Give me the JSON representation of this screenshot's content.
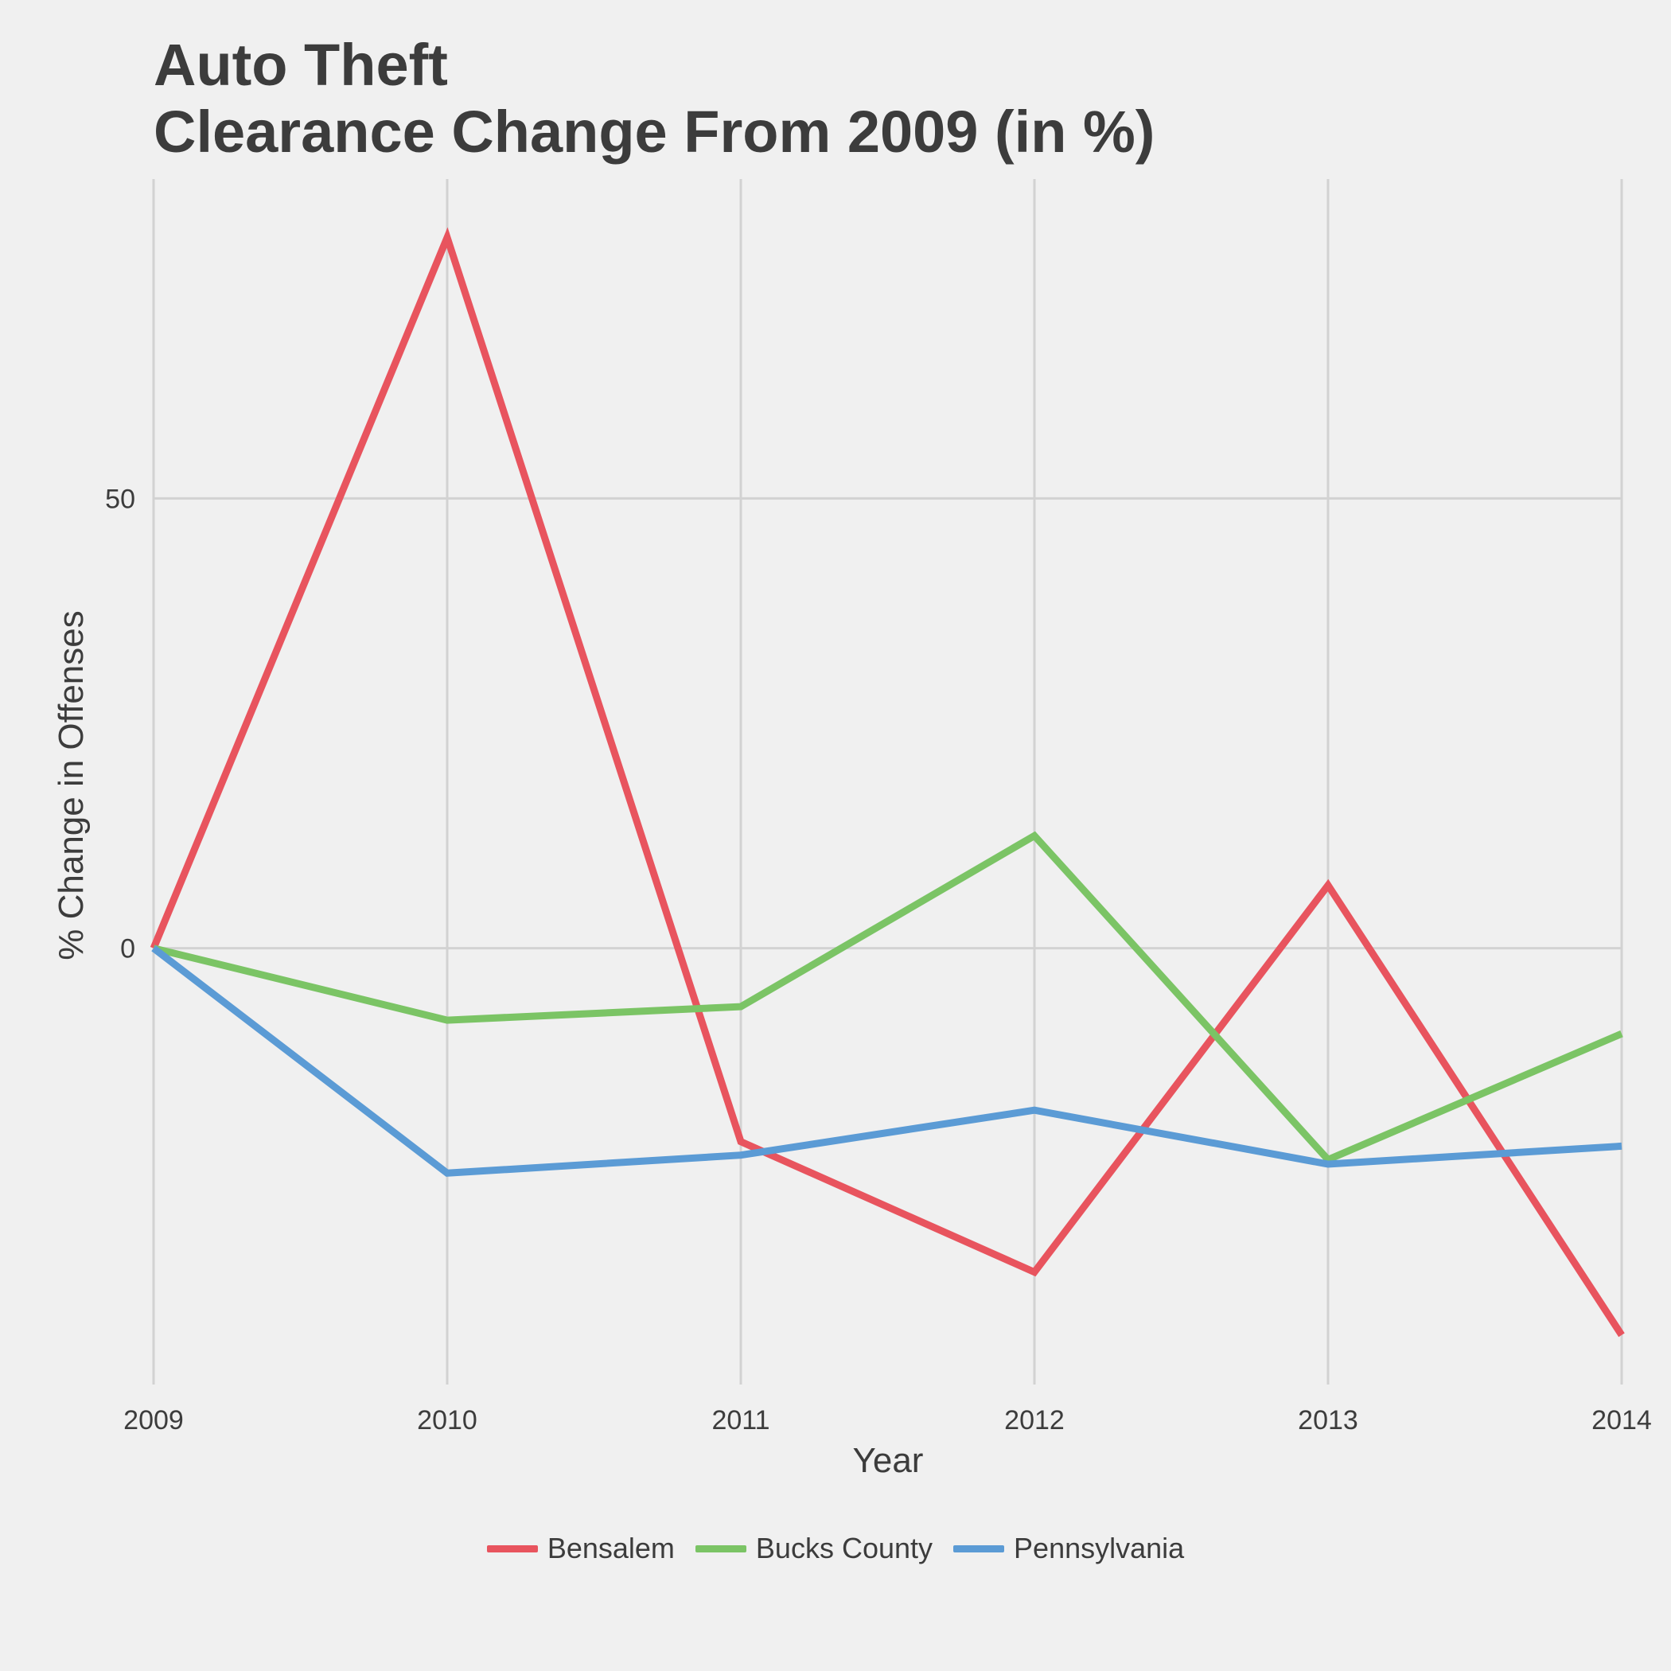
{
  "chart_data": {
    "type": "line",
    "title_lines": [
      "Auto Theft",
      "Clearance Change From 2009 (in %)"
    ],
    "xlabel": "Year",
    "ylabel": "% Change in Offenses",
    "x": [
      2009,
      2010,
      2011,
      2012,
      2013,
      2014
    ],
    "x_ticks": [
      "2009",
      "2010",
      "2011",
      "2012",
      "2013",
      "2014"
    ],
    "y_ticks": [
      0,
      50
    ],
    "y_tick_labels": [
      "0",
      "50"
    ],
    "xlim": [
      2009,
      2014
    ],
    "ylim": [
      -48.5,
      85.5
    ],
    "grid": true,
    "legend_position": "bottom",
    "series": [
      {
        "name": "Bensalem",
        "color": "#e8545e",
        "values": [
          0,
          79,
          -21.5,
          -36,
          7,
          -43
        ]
      },
      {
        "name": "Bucks County",
        "color": "#7bc465",
        "values": [
          0,
          -8,
          -6.5,
          12.5,
          -23.5,
          -9.5
        ]
      },
      {
        "name": "Pennsylvania",
        "color": "#5b9bd5",
        "values": [
          0,
          -25,
          -23,
          -18,
          -24,
          -22
        ]
      }
    ]
  }
}
